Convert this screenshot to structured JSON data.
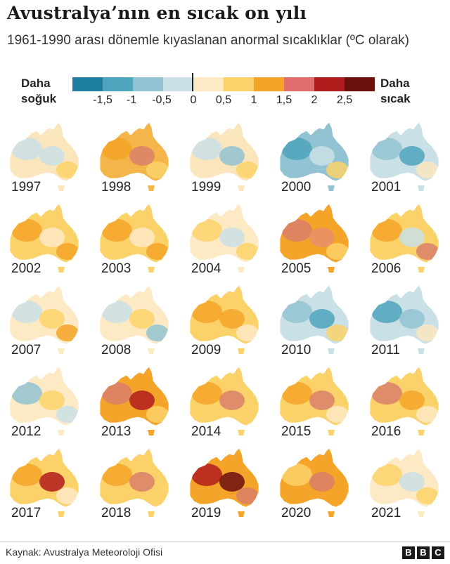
{
  "title": "Avustralya’nın en sıcak on yılı",
  "subtitle": "1961-1990 arası dönemle kıyaslanan anormal sıcaklıklar (ºC olarak)",
  "legend": {
    "cold_label": "Daha\nsoğuk",
    "hot_label": "Daha\nsıcak",
    "ticks": [
      "-1,5",
      "-1",
      "-0,5",
      "0",
      "0,5",
      "1",
      "1,5",
      "2",
      "2,5"
    ],
    "colors": [
      "#1f7fa3",
      "#4ea3bd",
      "#92c3d2",
      "#c9e0e6",
      "#fde9c4",
      "#fbd26a",
      "#f4a428",
      "#e06c6c",
      "#b01c1c",
      "#6b0f0f"
    ]
  },
  "years": [
    {
      "label": "1997",
      "base": "#fbe5bd",
      "patches": [
        "#c9e0e6",
        "#c9e0e6",
        "#fbd26a"
      ]
    },
    {
      "label": "1998",
      "base": "#f4b64a",
      "patches": [
        "#f4a428",
        "#d9806a",
        "#fbd26a"
      ]
    },
    {
      "label": "1999",
      "base": "#fbe5bd",
      "patches": [
        "#c9e0e6",
        "#92c3d2",
        "#fbd26a"
      ]
    },
    {
      "label": "2000",
      "base": "#92c3d2",
      "patches": [
        "#4ea3bd",
        "#c9e0e6",
        "#fbd26a"
      ]
    },
    {
      "label": "2001",
      "base": "#c9e0e6",
      "patches": [
        "#92c3d2",
        "#4ea3bd",
        "#fbe5bd"
      ]
    },
    {
      "label": "2002",
      "base": "#fbd26a",
      "patches": [
        "#f4a428",
        "#fde9c4",
        "#f4a428"
      ]
    },
    {
      "label": "2003",
      "base": "#fbd26a",
      "patches": [
        "#f4a428",
        "#fde9c4",
        "#f4a428"
      ]
    },
    {
      "label": "2004",
      "base": "#fde9c4",
      "patches": [
        "#fbd26a",
        "#c9e0e6",
        "#fbd26a"
      ]
    },
    {
      "label": "2005",
      "base": "#f4a428",
      "patches": [
        "#d9806a",
        "#e9906a",
        "#fbd26a"
      ]
    },
    {
      "label": "2006",
      "base": "#fbd26a",
      "patches": [
        "#f4a428",
        "#c9e0e6",
        "#d9806a"
      ]
    },
    {
      "label": "2007",
      "base": "#fde9c4",
      "patches": [
        "#c9e0e6",
        "#fbd26a",
        "#f4a428"
      ]
    },
    {
      "label": "2008",
      "base": "#fde9c4",
      "patches": [
        "#c9e0e6",
        "#fbd26a",
        "#92c3d2"
      ]
    },
    {
      "label": "2009",
      "base": "#fbd26a",
      "patches": [
        "#f4a428",
        "#f4a428",
        "#fde9c4"
      ]
    },
    {
      "label": "2010",
      "base": "#c9e0e6",
      "patches": [
        "#92c3d2",
        "#4ea3bd",
        "#fbd26a"
      ]
    },
    {
      "label": "2011",
      "base": "#c9e0e6",
      "patches": [
        "#4ea3bd",
        "#92c3d2",
        "#fbe5bd"
      ]
    },
    {
      "label": "2012",
      "base": "#fde9c4",
      "patches": [
        "#92c3d2",
        "#fbd26a",
        "#c9e0e6"
      ]
    },
    {
      "label": "2013",
      "base": "#f4a428",
      "patches": [
        "#d9806a",
        "#b01c1c",
        "#fbd26a"
      ]
    },
    {
      "label": "2014",
      "base": "#fbd26a",
      "patches": [
        "#f4a428",
        "#d9806a",
        "#fbd26a"
      ]
    },
    {
      "label": "2015",
      "base": "#fbd26a",
      "patches": [
        "#f4a428",
        "#d9806a",
        "#fde9c4"
      ]
    },
    {
      "label": "2016",
      "base": "#fbd26a",
      "patches": [
        "#d9806a",
        "#f4a428",
        "#fde9c4"
      ]
    },
    {
      "label": "2017",
      "base": "#fbd26a",
      "patches": [
        "#f4a428",
        "#b01c1c",
        "#fde9c4"
      ]
    },
    {
      "label": "2018",
      "base": "#fbd26a",
      "patches": [
        "#f4a428",
        "#d9806a",
        "#fbd26a"
      ]
    },
    {
      "label": "2019",
      "base": "#f4a428",
      "patches": [
        "#b01c1c",
        "#6b0f0f",
        "#d9806a"
      ]
    },
    {
      "label": "2020",
      "base": "#f4a428",
      "patches": [
        "#fbd26a",
        "#d9806a",
        "#f4a428"
      ]
    },
    {
      "label": "2021",
      "base": "#fde9c4",
      "patches": [
        "#fbd26a",
        "#c9e0e6",
        "#fbd26a"
      ]
    }
  ],
  "footer": {
    "source": "Kaynak: Avustralya Meteoroloji Ofisi",
    "logo_letters": [
      "B",
      "B",
      "C"
    ]
  }
}
